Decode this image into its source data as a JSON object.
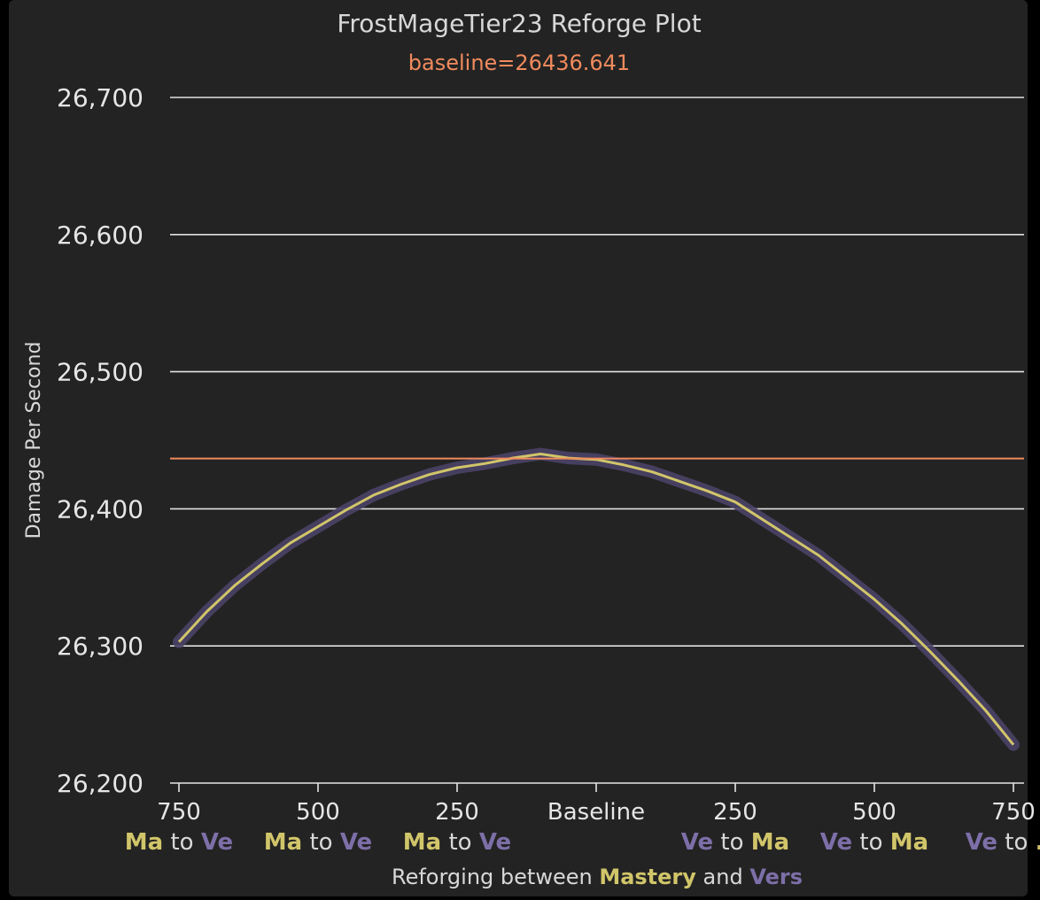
{
  "chart_data": {
    "type": "line",
    "title": "FrostMageTier23 Reforge Plot",
    "subtitle": "baseline=26436.641",
    "ylabel": "Damage Per Second",
    "xlabel_parts": [
      {
        "text": "Reforging between ",
        "color": "#d8d8d8"
      },
      {
        "text": "Mastery",
        "color": "#d1c56a"
      },
      {
        "text": " and ",
        "color": "#d8d8d8"
      },
      {
        "text": "Vers",
        "color": "#7d6fa8"
      }
    ],
    "ylim": [
      26200,
      26700
    ],
    "yticks": [
      "26,700",
      "26,600",
      "26,500",
      "26,400",
      "26,300",
      "26,200"
    ],
    "ytick_values": [
      26700,
      26600,
      26500,
      26400,
      26300,
      26200
    ],
    "xlim": [
      -750,
      750
    ],
    "xticks": [
      {
        "value": -750,
        "label": "750"
      },
      {
        "value": -500,
        "label": "500"
      },
      {
        "value": -250,
        "label": "250"
      },
      {
        "value": 0,
        "label": "Baseline"
      },
      {
        "value": 250,
        "label": "250"
      },
      {
        "value": 500,
        "label": "500"
      },
      {
        "value": 750,
        "label": "750"
      }
    ],
    "direction_labels": [
      {
        "value": -750,
        "from": "Ma",
        "to_word": " to ",
        "target": "Ve",
        "from_color": "#d1c56a",
        "target_color": "#7d6fa8"
      },
      {
        "value": -500,
        "from": "Ma",
        "to_word": " to ",
        "target": "Ve",
        "from_color": "#d1c56a",
        "target_color": "#7d6fa8"
      },
      {
        "value": -250,
        "from": "Ma",
        "to_word": " to ",
        "target": "Ve",
        "from_color": "#d1c56a",
        "target_color": "#7d6fa8"
      },
      {
        "value": 250,
        "from": "Ve",
        "to_word": " to ",
        "target": "Ma",
        "from_color": "#7d6fa8",
        "target_color": "#d1c56a"
      },
      {
        "value": 500,
        "from": "Ve",
        "to_word": " to ",
        "target": "Ma",
        "from_color": "#7d6fa8",
        "target_color": "#d1c56a"
      },
      {
        "value": 750,
        "from": "Ve",
        "to_word": " to ",
        "target": "...",
        "from_color": "#7d6fa8",
        "target_color": "#d1c56a"
      }
    ],
    "baseline": 26436.641,
    "series": [
      {
        "color": "#d1c56a",
        "band_color": "#4a4266",
        "x": [
          -750,
          -700,
          -650,
          -600,
          -550,
          -500,
          -450,
          -400,
          -350,
          -300,
          -250,
          -200,
          -150,
          -100,
          -50,
          0,
          50,
          100,
          150,
          200,
          250,
          300,
          350,
          400,
          450,
          500,
          550,
          600,
          650,
          700,
          750
        ],
        "values": [
          26303,
          26325,
          26344,
          26360,
          26375,
          26387,
          26399,
          26410,
          26418,
          26425,
          26430,
          26433,
          26437,
          26440,
          26437,
          26436,
          26432,
          26427,
          26420,
          26413,
          26405,
          26392,
          26379,
          26366,
          26350,
          26334,
          26316,
          26296,
          26275,
          26253,
          26228
        ]
      }
    ],
    "grid": true
  },
  "colors": {
    "background": "#232323",
    "grid": "#e0e0e0",
    "baseline": "#f08a5d",
    "mastery": "#d1c56a",
    "vers": "#7d6fa8"
  }
}
